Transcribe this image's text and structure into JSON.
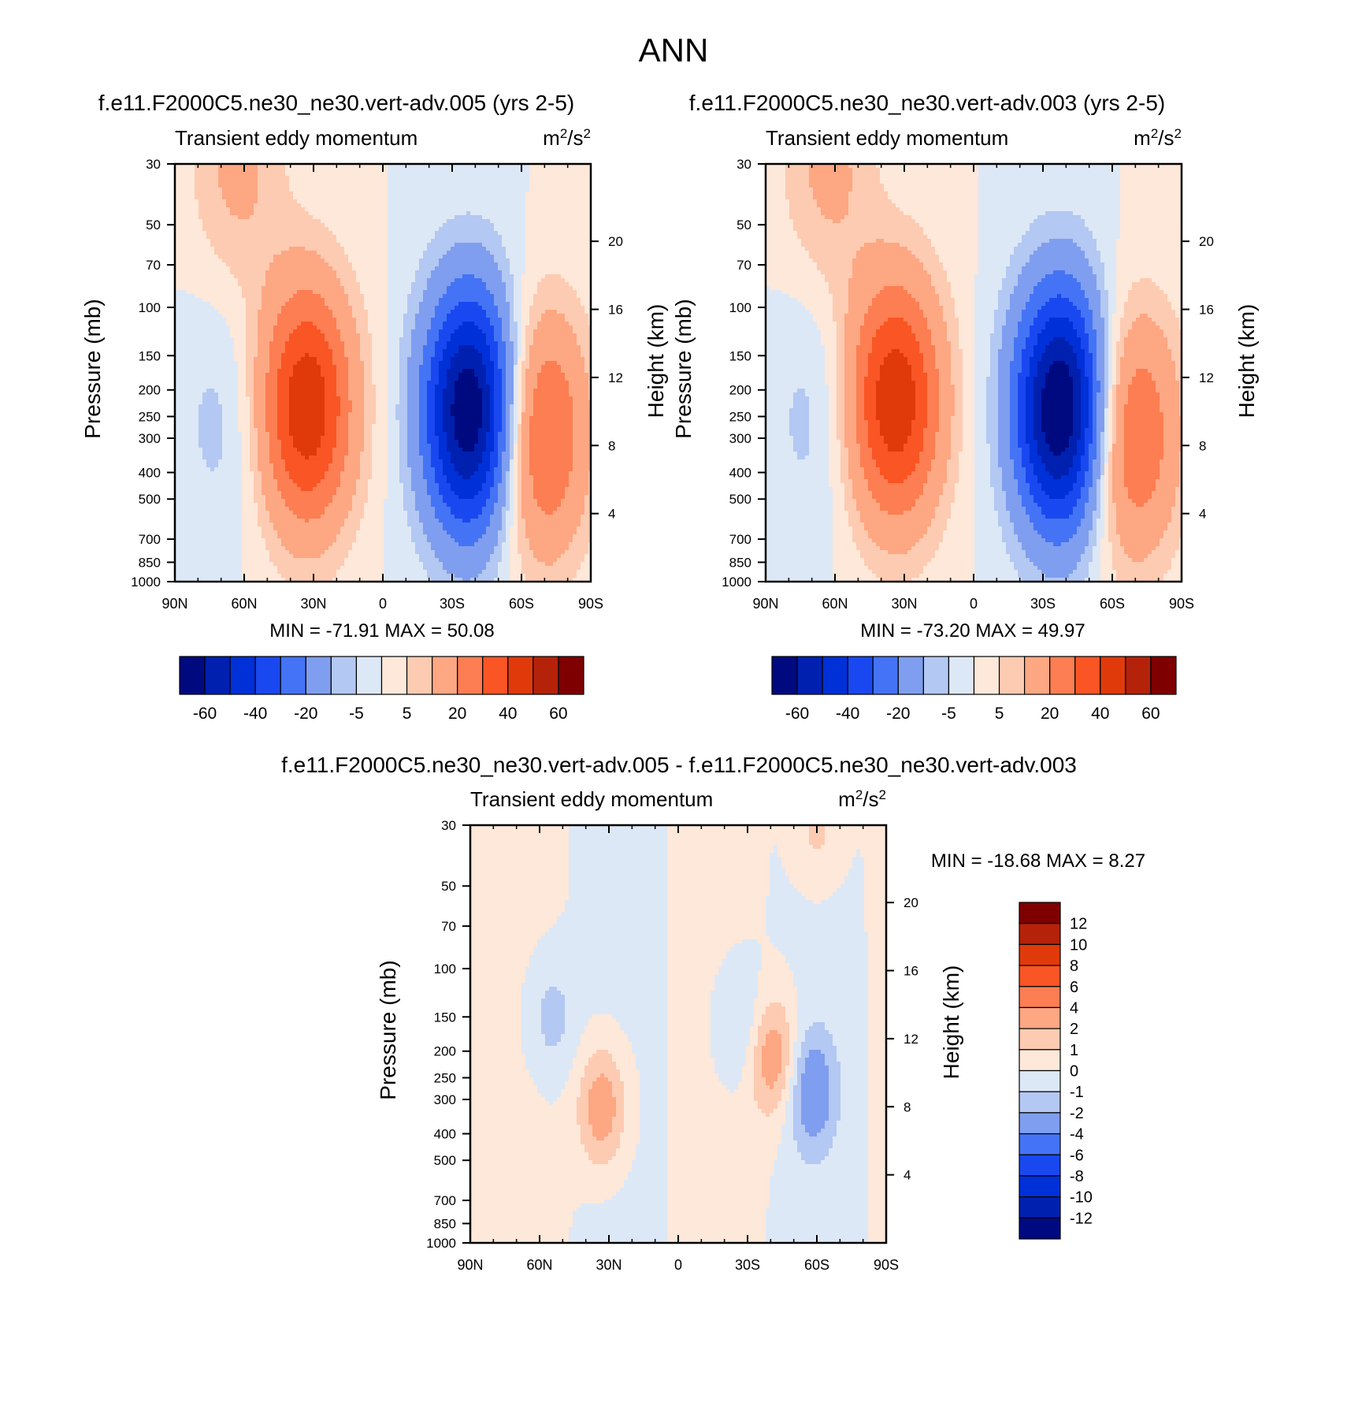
{
  "figure_title": "ANN",
  "palettes": {
    "main": [
      "#000a80",
      "#0020b0",
      "#0030d8",
      "#1a48f0",
      "#4474f5",
      "#809eef",
      "#b3c8f2",
      "#dde8f6",
      "#fde8d9",
      "#fdcbb1",
      "#fda783",
      "#fc7e52",
      "#fa5524",
      "#e03a0b",
      "#b5220a",
      "#7f0000"
    ],
    "diff": [
      "#000a80",
      "#0020b0",
      "#0030d8",
      "#1a48f0",
      "#4474f5",
      "#809eef",
      "#b3c8f2",
      "#dde8f6",
      "#fde8d9",
      "#fdcbb1",
      "#fda783",
      "#fc7e52",
      "#fa5524",
      "#e03a0b",
      "#b5220a",
      "#7f0000"
    ]
  },
  "chart_data": [
    {
      "type": "contour",
      "title": "f.e11.F2000C5.ne30_ne30.vert-adv.005 (yrs 2-5)",
      "left_label": "Transient eddy momentum",
      "right_label_base": "m",
      "right_label_sup1": "2",
      "right_label_mid": "/s",
      "right_label_sup2": "2",
      "ylabel": "Pressure (mb)",
      "y2label": "Height (km)",
      "x_ticks": [
        "90N",
        "60N",
        "30N",
        "0",
        "30S",
        "60S",
        "90S"
      ],
      "x_values": [
        90,
        60,
        30,
        0,
        -30,
        -60,
        -90
      ],
      "y_ticks": [
        "30",
        "50",
        "70",
        "100",
        "150",
        "200",
        "250",
        "300",
        "400",
        "500",
        "700",
        "850",
        "1000"
      ],
      "y_values": [
        30,
        50,
        70,
        100,
        150,
        200,
        250,
        300,
        400,
        500,
        700,
        850,
        1000
      ],
      "y2_ticks": [
        "20",
        "16",
        "12",
        "8",
        "4"
      ],
      "y2_values": [
        20,
        16,
        12,
        8,
        4
      ],
      "ylim": [
        1000,
        30
      ],
      "y_scale": "log",
      "minmax_text": "MIN = -71.91  MAX =  50.08",
      "levels": [
        -70,
        -60,
        -50,
        -40,
        -30,
        -20,
        -10,
        -5,
        0,
        5,
        10,
        20,
        30,
        40,
        50,
        60,
        70
      ],
      "colorbar_labels": [
        "-60",
        "-40",
        "-20",
        "-5",
        "5",
        "20",
        "40",
        "60"
      ],
      "colorbar_orientation": "horizontal",
      "features": [
        {
          "lat": 33,
          "p": 230,
          "amplitude": 48
        },
        {
          "lat": -38,
          "p": 240,
          "amplitude": -71
        },
        {
          "lat": -68,
          "p": 290,
          "amplitude": 35
        },
        {
          "lat": 63,
          "p": 30,
          "amplitude": 12
        },
        {
          "lat": 69,
          "p": 260,
          "amplitude": -7
        }
      ]
    },
    {
      "type": "contour",
      "title": "f.e11.F2000C5.ne30_ne30.vert-adv.003 (yrs 2-5)",
      "left_label": "Transient eddy momentum",
      "right_label_base": "m",
      "right_label_sup1": "2",
      "right_label_mid": "/s",
      "right_label_sup2": "2",
      "ylabel": "Pressure (mb)",
      "y2label": "Height (km)",
      "x_ticks": [
        "90N",
        "60N",
        "30N",
        "0",
        "30S",
        "60S",
        "90S"
      ],
      "x_values": [
        90,
        60,
        30,
        0,
        -30,
        -60,
        -90
      ],
      "y_ticks": [
        "30",
        "50",
        "70",
        "100",
        "150",
        "200",
        "250",
        "300",
        "400",
        "500",
        "700",
        "850",
        "1000"
      ],
      "y_values": [
        30,
        50,
        70,
        100,
        150,
        200,
        250,
        300,
        400,
        500,
        700,
        850,
        1000
      ],
      "y2_ticks": [
        "20",
        "16",
        "12",
        "8",
        "4"
      ],
      "y2_values": [
        20,
        16,
        12,
        8,
        4
      ],
      "ylim": [
        1000,
        30
      ],
      "y_scale": "log",
      "minmax_text": "MIN = -73.20  MAX =  49.97",
      "levels": [
        -70,
        -60,
        -50,
        -40,
        -30,
        -20,
        -10,
        -5,
        0,
        5,
        10,
        20,
        30,
        40,
        50,
        60,
        70
      ],
      "colorbar_labels": [
        "-60",
        "-40",
        "-20",
        "-5",
        "5",
        "20",
        "40",
        "60"
      ],
      "colorbar_orientation": "horizontal",
      "features": [
        {
          "lat": 34,
          "p": 220,
          "amplitude": 48
        },
        {
          "lat": -38,
          "p": 235,
          "amplitude": -73
        },
        {
          "lat": -68,
          "p": 290,
          "amplitude": 33
        },
        {
          "lat": 63,
          "p": 30,
          "amplitude": 12
        },
        {
          "lat": 69,
          "p": 250,
          "amplitude": -7
        }
      ]
    },
    {
      "type": "contour",
      "title": "f.e11.F2000C5.ne30_ne30.vert-adv.005 - f.e11.F2000C5.ne30_ne30.vert-adv.003",
      "left_label": "Transient eddy momentum",
      "right_label_base": "m",
      "right_label_sup1": "2",
      "right_label_mid": "/s",
      "right_label_sup2": "2",
      "ylabel": "Pressure (mb)",
      "y2label": "Height (km)",
      "x_ticks": [
        "90N",
        "60N",
        "30N",
        "0",
        "30S",
        "60S",
        "90S"
      ],
      "x_values": [
        90,
        60,
        30,
        0,
        -30,
        -60,
        -90
      ],
      "y_ticks": [
        "30",
        "50",
        "70",
        "100",
        "150",
        "200",
        "250",
        "300",
        "400",
        "500",
        "700",
        "850",
        "1000"
      ],
      "y_values": [
        30,
        50,
        70,
        100,
        150,
        200,
        250,
        300,
        400,
        500,
        700,
        850,
        1000
      ],
      "y2_ticks": [
        "20",
        "16",
        "12",
        "8",
        "4"
      ],
      "y2_values": [
        20,
        16,
        12,
        8,
        4
      ],
      "ylim": [
        1000,
        30
      ],
      "y_scale": "log",
      "minmax_text": "MIN = -18.68  MAX =   8.27",
      "levels": [
        -14,
        -12,
        -10,
        -8,
        -6,
        -4,
        -2,
        -1,
        0,
        1,
        2,
        4,
        6,
        8,
        10,
        12,
        14
      ],
      "colorbar_labels": [
        "12",
        "10",
        "8",
        "6",
        "4",
        "2",
        "1",
        "0",
        "-1",
        "-2",
        "-4",
        "-6",
        "-8",
        "-10",
        "-12"
      ],
      "colorbar_orientation": "vertical",
      "features": [
        {
          "lat": 33,
          "p": 320,
          "amplitude": 3
        },
        {
          "lat": -41,
          "p": 210,
          "amplitude": 3
        },
        {
          "lat": -58,
          "p": 280,
          "amplitude": -3
        },
        {
          "lat": 55,
          "p": 150,
          "amplitude": -1.5
        },
        {
          "lat": -27,
          "p": 160,
          "amplitude": -1.5
        },
        {
          "lat": -60,
          "p": 30,
          "amplitude": 1.5
        }
      ]
    }
  ]
}
